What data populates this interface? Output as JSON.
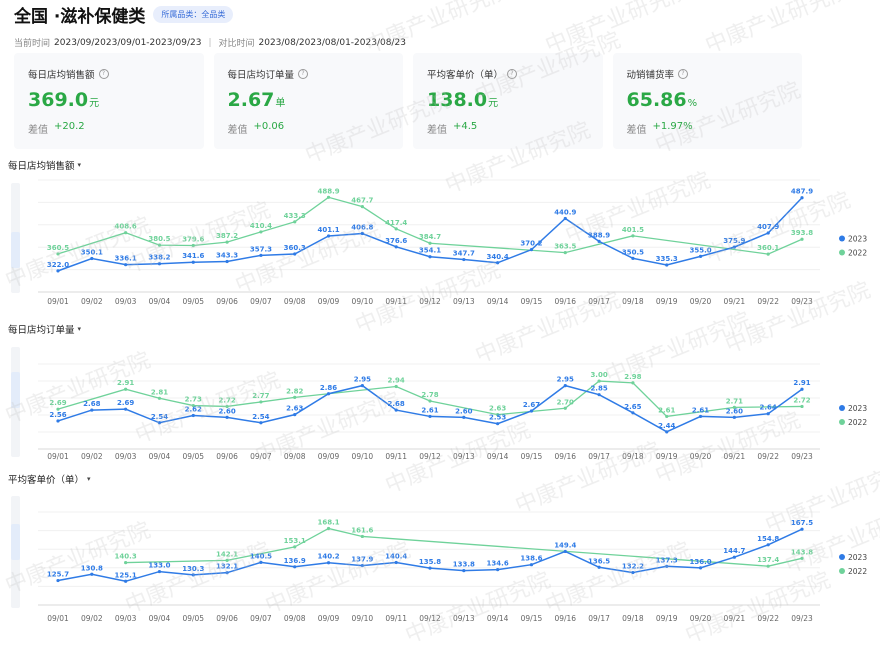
{
  "header": {
    "title": "全国 ·滋补保健类",
    "category_tag": "所属品类：全品类"
  },
  "time": {
    "current_label": "当前时间",
    "current_value": "2023/09/2023/09/01-2023/09/23",
    "compare_label": "对比时间",
    "compare_value": "2023/08/2023/08/01-2023/08/23"
  },
  "cards": [
    {
      "title": "每日店均销售额",
      "value": "369.0",
      "unit": "元",
      "diff_label": "差值",
      "diff_value": "+20.2"
    },
    {
      "title": "每日店均订单量",
      "value": "2.67",
      "unit": "单",
      "diff_label": "差值",
      "diff_value": "+0.06"
    },
    {
      "title": "平均客单价（单）",
      "value": "138.0",
      "unit": "元",
      "diff_label": "差值",
      "diff_value": "+4.5"
    },
    {
      "title": "动销铺货率",
      "value": "65.86",
      "unit": "%",
      "diff_label": "差值",
      "diff_value": "+1.97%"
    }
  ],
  "watermark_text": "中康产业研究院",
  "colors": {
    "accent": "#2aa845",
    "series_2023": "#2f7be6",
    "series_2022": "#6fd29a"
  },
  "chart_data": [
    {
      "type": "line",
      "title": "每日店均销售额",
      "categories": [
        "09/01",
        "09/02",
        "09/03",
        "09/04",
        "09/05",
        "09/06",
        "09/07",
        "09/08",
        "09/09",
        "09/10",
        "09/11",
        "09/12",
        "09/13",
        "09/14",
        "09/15",
        "09/16",
        "09/17",
        "09/18",
        "09/19",
        "09/20",
        "09/21",
        "09/22",
        "09/23"
      ],
      "series": [
        {
          "name": "2023",
          "values": [
            322.0,
            350.1,
            336.1,
            338.2,
            341.6,
            343.3,
            357.3,
            360.3,
            401.1,
            406.8,
            376.6,
            354.1,
            347.7,
            340.4,
            370.2,
            440.9,
            388.9,
            350.5,
            335.3,
            355.0,
            375.9,
            407.9,
            487.9
          ]
        },
        {
          "name": "2022",
          "values": [
            360.5,
            null,
            408.6,
            380.5,
            379.6,
            387.2,
            410.4,
            433.3,
            488.9,
            467.7,
            417.4,
            384.7,
            null,
            null,
            null,
            363.5,
            null,
            401.5,
            null,
            null,
            null,
            360.1,
            393.8
          ]
        }
      ],
      "ylim": [
        290,
        510
      ]
    },
    {
      "type": "line",
      "title": "每日店均订单量",
      "categories": [
        "09/01",
        "09/02",
        "09/03",
        "09/04",
        "09/05",
        "09/06",
        "09/07",
        "09/08",
        "09/09",
        "09/10",
        "09/11",
        "09/12",
        "09/13",
        "09/14",
        "09/15",
        "09/16",
        "09/17",
        "09/18",
        "09/19",
        "09/20",
        "09/21",
        "09/22",
        "09/23"
      ],
      "series": [
        {
          "name": "2023",
          "values": [
            2.56,
            2.68,
            2.69,
            2.54,
            2.62,
            2.6,
            2.54,
            2.63,
            2.86,
            2.95,
            2.68,
            2.61,
            2.6,
            2.53,
            2.67,
            2.95,
            2.85,
            2.65,
            2.44,
            2.61,
            2.6,
            2.64,
            2.91
          ]
        },
        {
          "name": "2022",
          "values": [
            2.69,
            null,
            2.91,
            2.81,
            2.73,
            2.72,
            2.77,
            2.82,
            null,
            null,
            2.94,
            2.78,
            null,
            2.63,
            null,
            2.7,
            3.0,
            2.98,
            2.61,
            null,
            2.71,
            null,
            2.72
          ]
        }
      ],
      "ylim": [
        2.35,
        3.1
      ]
    },
    {
      "type": "line",
      "title": "平均客单价（单）",
      "categories": [
        "09/01",
        "09/02",
        "09/03",
        "09/04",
        "09/05",
        "09/06",
        "09/07",
        "09/08",
        "09/09",
        "09/10",
        "09/11",
        "09/12",
        "09/13",
        "09/14",
        "09/15",
        "09/16",
        "09/17",
        "09/18",
        "09/19",
        "09/20",
        "09/21",
        "09/22",
        "09/23"
      ],
      "series": [
        {
          "name": "2023",
          "values": [
            125.7,
            130.8,
            125.1,
            133.0,
            130.3,
            132.1,
            140.5,
            136.9,
            140.2,
            137.9,
            140.4,
            135.8,
            133.8,
            134.6,
            138.6,
            149.4,
            136.5,
            132.2,
            137.3,
            136.0,
            144.7,
            154.8,
            167.5
          ]
        },
        {
          "name": "2022",
          "values": [
            null,
            null,
            140.3,
            null,
            null,
            142.1,
            null,
            153.1,
            168.1,
            161.6,
            null,
            null,
            null,
            null,
            null,
            null,
            null,
            null,
            null,
            null,
            null,
            137.4,
            143.8
          ]
        }
      ],
      "ylim": [
        118,
        175
      ]
    }
  ],
  "charts_ui": [
    {
      "title": "每日店均销售额",
      "legend": [
        "2023",
        "2022"
      ]
    },
    {
      "title": "每日店均订单量",
      "legend": [
        "2023",
        "2022"
      ]
    },
    {
      "title": "平均客单价（单）",
      "legend": [
        "2023",
        "2022"
      ]
    }
  ]
}
